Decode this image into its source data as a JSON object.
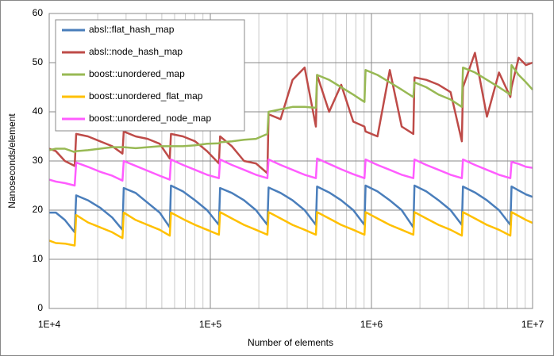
{
  "chart_data": {
    "type": "line",
    "x_label": "Number of elements",
    "y_label": "Nanoseconds/element",
    "x_log": true,
    "grid": true,
    "xlim": [
      10000,
      10000000
    ],
    "xticks": [
      {
        "value": 10000,
        "label": "1E+4"
      },
      {
        "value": 100000,
        "label": "1E+5"
      },
      {
        "value": 1000000,
        "label": "1E+6"
      },
      {
        "value": 10000000,
        "label": "1E+7"
      }
    ],
    "x_minor_ticks": [
      20000,
      30000,
      40000,
      50000,
      60000,
      70000,
      80000,
      90000,
      200000,
      300000,
      400000,
      500000,
      600000,
      700000,
      800000,
      900000,
      2000000,
      3000000,
      4000000,
      5000000,
      6000000,
      7000000,
      8000000,
      9000000
    ],
    "ylim": [
      0,
      60
    ],
    "yticks": [
      0,
      10,
      20,
      30,
      40,
      50,
      60
    ],
    "legend": "upper-left",
    "x": [
      10000,
      11000,
      12500,
      14400,
      14700,
      17400,
      20700,
      24600,
      28500,
      29000,
      34400,
      40800,
      48500,
      56000,
      57000,
      67600,
      80400,
      95500,
      113000,
      115000,
      136000,
      162000,
      192000,
      226000,
      230000,
      273000,
      324000,
      385000,
      452000,
      460000,
      546000,
      649000,
      771000,
      905000,
      920000,
      1090000,
      1300000,
      1540000,
      1820000,
      1850000,
      2190000,
      2610000,
      3100000,
      3640000,
      3700000,
      4390000,
      5210000,
      6190000,
      7280000,
      7400000,
      8200000,
      9100000,
      10000000
    ],
    "series": [
      {
        "name": "absl::flat_hash_map",
        "color": "#4a7ebb",
        "values": [
          19.5,
          19.5,
          18,
          15.5,
          23,
          22,
          20.5,
          18.5,
          16,
          24.5,
          23.5,
          21.5,
          19.5,
          16.5,
          25,
          23.8,
          22,
          20,
          17,
          24.5,
          23.5,
          22,
          20,
          17,
          24.6,
          23.5,
          22,
          20,
          17,
          24.8,
          23.6,
          22,
          20,
          17,
          25,
          23.8,
          22,
          20,
          16.5,
          25,
          23.8,
          22,
          20,
          17,
          24.8,
          23.6,
          22,
          20,
          17,
          24.8,
          24,
          23.2,
          22.7
        ]
      },
      {
        "name": "absl::node_hash_map",
        "color": "#be4b48",
        "values": [
          32.5,
          32,
          30,
          29,
          35.5,
          35,
          34,
          33,
          31.5,
          36,
          35,
          34.5,
          33.5,
          30.5,
          35.5,
          35,
          34,
          32,
          29.5,
          35,
          33,
          30,
          29.5,
          27.5,
          39.5,
          38.5,
          46.5,
          49,
          37,
          47.5,
          40,
          45.5,
          38,
          37,
          36,
          35,
          48.5,
          37,
          35.5,
          47,
          46.5,
          45.5,
          44,
          34,
          45,
          52,
          39,
          48,
          43,
          45,
          51,
          49.5,
          50
        ]
      },
      {
        "name": "boost::unordered_map",
        "color": "#98b954",
        "values": [
          32.2,
          32.5,
          32.5,
          31.8,
          32,
          32.2,
          32.5,
          32.8,
          32.8,
          32.8,
          32.6,
          32.8,
          33,
          33,
          33,
          33,
          33.2,
          33.5,
          33.6,
          33.8,
          34,
          34.3,
          34.5,
          35.5,
          40,
          40.5,
          41,
          41,
          40.8,
          47.5,
          46.5,
          45,
          43.5,
          42,
          48.5,
          47.5,
          46,
          44.5,
          43,
          46,
          45,
          43.5,
          42.5,
          41,
          49,
          48,
          46.5,
          45,
          43.5,
          49.5,
          47.5,
          46,
          44.5
        ]
      },
      {
        "name": "boost::unordered_flat_map",
        "color": "#ffc000",
        "values": [
          13.8,
          13.3,
          13.2,
          12.8,
          19,
          17.5,
          16.5,
          15.5,
          14.3,
          19.5,
          18,
          17,
          16,
          14.8,
          19.5,
          18.2,
          17,
          16,
          15,
          19.6,
          18.3,
          17,
          16,
          15,
          19.6,
          18.3,
          17,
          16,
          15,
          19.6,
          18.3,
          17,
          16,
          15,
          19.6,
          18.3,
          17,
          16,
          15,
          19.6,
          18.3,
          17,
          16,
          14.8,
          19.6,
          18.3,
          17,
          16,
          14.8,
          19.6,
          18.8,
          18,
          17.4
        ]
      },
      {
        "name": "boost::unordered_node_map",
        "color": "#ff5cff",
        "values": [
          26.2,
          25.8,
          25.5,
          25,
          29.7,
          28.8,
          27.8,
          27,
          26,
          30,
          29,
          28,
          27,
          26.2,
          30.3,
          29.2,
          28.2,
          27.2,
          26.5,
          30.3,
          29.2,
          28.2,
          27.2,
          26.5,
          30.3,
          29.2,
          28.2,
          27.2,
          26.5,
          30.5,
          29.4,
          28.3,
          27.3,
          26.5,
          30.3,
          29.2,
          28.2,
          27.2,
          26.5,
          30.3,
          29.2,
          28.2,
          27.2,
          26.5,
          30.3,
          29.2,
          28.2,
          27.2,
          26.5,
          29.8,
          29.4,
          28.8,
          28.6
        ]
      }
    ]
  }
}
